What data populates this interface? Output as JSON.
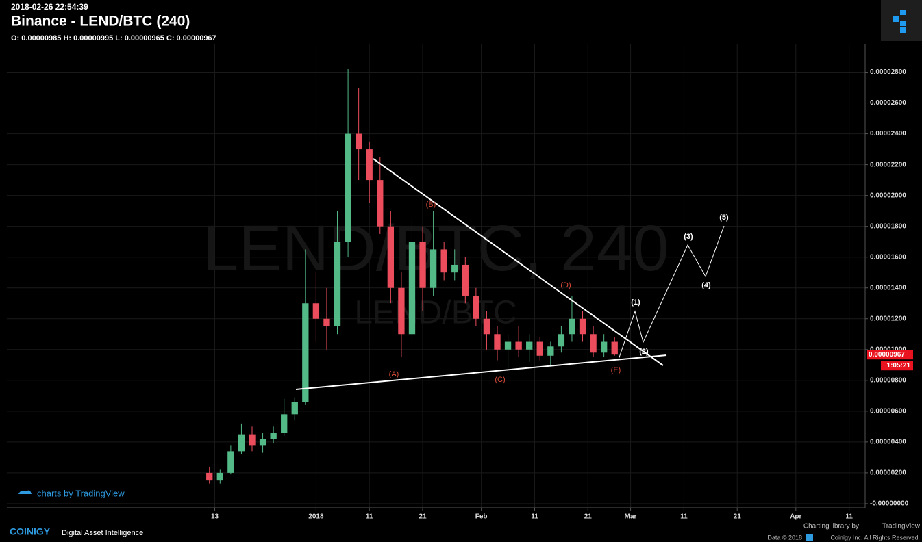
{
  "header": {
    "timestamp": "2018-02-26 22:54:39",
    "title": "Binance - LEND/BTC (240)",
    "ohlc": "O: 0.00000985 H: 0.00000995 L: 0.00000965 C: 0.00000967"
  },
  "chart_data": {
    "type": "candlestick",
    "watermark": "LEND/BTC, 240",
    "watermark_small": "LEND/BTC",
    "up_color": "#53b987",
    "down_color": "#eb4d5c",
    "grid": true,
    "x": [
      "2017-12-12",
      "2017-12-14",
      "2017-12-16",
      "2017-12-18",
      "2017-12-20",
      "2017-12-22",
      "2017-12-24",
      "2017-12-26",
      "2017-12-28",
      "2017-12-30",
      "2018-01-01",
      "2018-01-03",
      "2018-01-05",
      "2018-01-07",
      "2018-01-09",
      "2018-01-11",
      "2018-01-13",
      "2018-01-15",
      "2018-01-17",
      "2018-01-19",
      "2018-01-21",
      "2018-01-23",
      "2018-01-25",
      "2018-01-27",
      "2018-01-29",
      "2018-01-31",
      "2018-02-02",
      "2018-02-04",
      "2018-02-06",
      "2018-02-08",
      "2018-02-10",
      "2018-02-12",
      "2018-02-14",
      "2018-02-16",
      "2018-02-18",
      "2018-02-20",
      "2018-02-22",
      "2018-02-24",
      "2018-02-26"
    ],
    "open": [
      2e-06,
      1.5e-06,
      2e-06,
      3.4e-06,
      4.5e-06,
      3.8e-06,
      4.2e-06,
      4.6e-06,
      5.8e-06,
      6.6e-06,
      1.3e-05,
      1.2e-05,
      1.15e-05,
      1.7e-05,
      2.4e-05,
      2.3e-05,
      2.1e-05,
      1.8e-05,
      1.4e-05,
      1.1e-05,
      1.7e-05,
      1.4e-05,
      1.65e-05,
      1.5e-05,
      1.55e-05,
      1.35e-05,
      1.2e-05,
      1.1e-05,
      1e-05,
      1.05e-05,
      1e-05,
      1.05e-05,
      9.6e-06,
      1.02e-05,
      1.1e-05,
      1.2e-05,
      1.1e-05,
      9.8e-06,
      1.05e-05
    ],
    "high": [
      2.4e-06,
      2.2e-06,
      3.8e-06,
      5.2e-06,
      5e-06,
      4.6e-06,
      5e-06,
      6.8e-06,
      6.9e-06,
      1.65e-05,
      1.5e-05,
      1.4e-05,
      1.9e-05,
      2.82e-05,
      2.7e-05,
      2.35e-05,
      2.25e-05,
      1.9e-05,
      1.5e-05,
      1.85e-05,
      1.8e-05,
      1.9e-05,
      1.7e-05,
      1.65e-05,
      1.6e-05,
      1.4e-05,
      1.25e-05,
      1.15e-05,
      1.1e-05,
      1.15e-05,
      1.1e-05,
      1.08e-05,
      1.05e-05,
      1.15e-05,
      1.35e-05,
      1.25e-05,
      1.15e-05,
      1.1e-05,
      1.08e-05
    ],
    "low": [
      1.3e-06,
      1.3e-06,
      1.9e-06,
      3.2e-06,
      3.4e-06,
      3.3e-06,
      3.9e-06,
      4.4e-06,
      5.4e-06,
      6.4e-06,
      1.05e-05,
      1e-05,
      1.1e-05,
      1.6e-05,
      2.1e-05,
      1.95e-05,
      1.75e-05,
      1.3e-05,
      9.5e-06,
      1.05e-05,
      1.25e-05,
      1.35e-05,
      1.45e-05,
      1.45e-05,
      1.3e-05,
      1.15e-05,
      1e-05,
      9.3e-06,
      8.8e-06,
      9.5e-06,
      9.2e-06,
      9.3e-06,
      9e-06,
      9.8e-06,
      1.05e-05,
      1.05e-05,
      9.5e-06,
      9.5e-06,
      9.6e-06
    ],
    "close": [
      1.5e-06,
      2e-06,
      3.4e-06,
      4.5e-06,
      3.8e-06,
      4.2e-06,
      4.6e-06,
      5.8e-06,
      6.6e-06,
      1.3e-05,
      1.2e-05,
      1.15e-05,
      1.7e-05,
      2.4e-05,
      2.3e-05,
      2.1e-05,
      1.8e-05,
      1.4e-05,
      1.1e-05,
      1.7e-05,
      1.4e-05,
      1.65e-05,
      1.5e-05,
      1.55e-05,
      1.35e-05,
      1.2e-05,
      1.1e-05,
      1e-05,
      1.05e-05,
      1e-05,
      1.05e-05,
      9.6e-06,
      1.02e-05,
      1.1e-05,
      1.2e-05,
      1.1e-05,
      9.8e-06,
      1.05e-05,
      9.67e-06
    ],
    "xlim": [
      "2017-11-04",
      "2018-04-14"
    ],
    "xticks": [
      {
        "value": "2017-12-13",
        "label": "13"
      },
      {
        "value": "2018-01-01",
        "label": "2018"
      },
      {
        "value": "2018-01-11",
        "label": "11"
      },
      {
        "value": "2018-01-21",
        "label": "21"
      },
      {
        "value": "2018-02-01",
        "label": "Feb"
      },
      {
        "value": "2018-02-11",
        "label": "11"
      },
      {
        "value": "2018-02-21",
        "label": "21"
      },
      {
        "value": "2018-03-01",
        "label": "Mar"
      },
      {
        "value": "2018-03-11",
        "label": "11"
      },
      {
        "value": "2018-03-21",
        "label": "21"
      },
      {
        "value": "2018-04-01",
        "label": "Apr"
      },
      {
        "value": "2018-04-11",
        "label": "11"
      }
    ],
    "ylim": [
      -2.7e-07,
      2.98e-05
    ],
    "yticks": [
      {
        "value": 0,
        "label": "-0.00000000"
      },
      {
        "value": 2e-06,
        "label": "0.00000200"
      },
      {
        "value": 4e-06,
        "label": "0.00000400"
      },
      {
        "value": 6e-06,
        "label": "0.00000600"
      },
      {
        "value": 8e-06,
        "label": "0.00000800"
      },
      {
        "value": 1e-05,
        "label": "0.00001000"
      },
      {
        "value": 1.2e-05,
        "label": "0.00001200"
      },
      {
        "value": 1.4e-05,
        "label": "0.00001400"
      },
      {
        "value": 1.6e-05,
        "label": "0.00001600"
      },
      {
        "value": 1.8e-05,
        "label": "0.00001800"
      },
      {
        "value": 2e-05,
        "label": "0.00002000"
      },
      {
        "value": 2.2e-05,
        "label": "0.00002200"
      },
      {
        "value": 2.4e-05,
        "label": "0.00002400"
      },
      {
        "value": 2.6e-05,
        "label": "0.00002600"
      },
      {
        "value": 2.8e-05,
        "label": "0.00002800"
      }
    ],
    "last_price": 9.67e-06,
    "countdown": "1:05:21",
    "annotations": [
      "(A)",
      "(B)",
      "(C)",
      "(D)",
      "(E)",
      "(1)",
      "(2)",
      "(3)",
      "(4)",
      "(5)"
    ]
  },
  "footer": {
    "watermark_link": "charts by TradingView",
    "brand": "COINIGY",
    "tagline": "Digital Asset Intelligence",
    "library": "Charting library by",
    "library_name": "TradingView",
    "copyright": "Data © 2018",
    "rights": "Coinigy Inc. All Rights Reserved."
  }
}
